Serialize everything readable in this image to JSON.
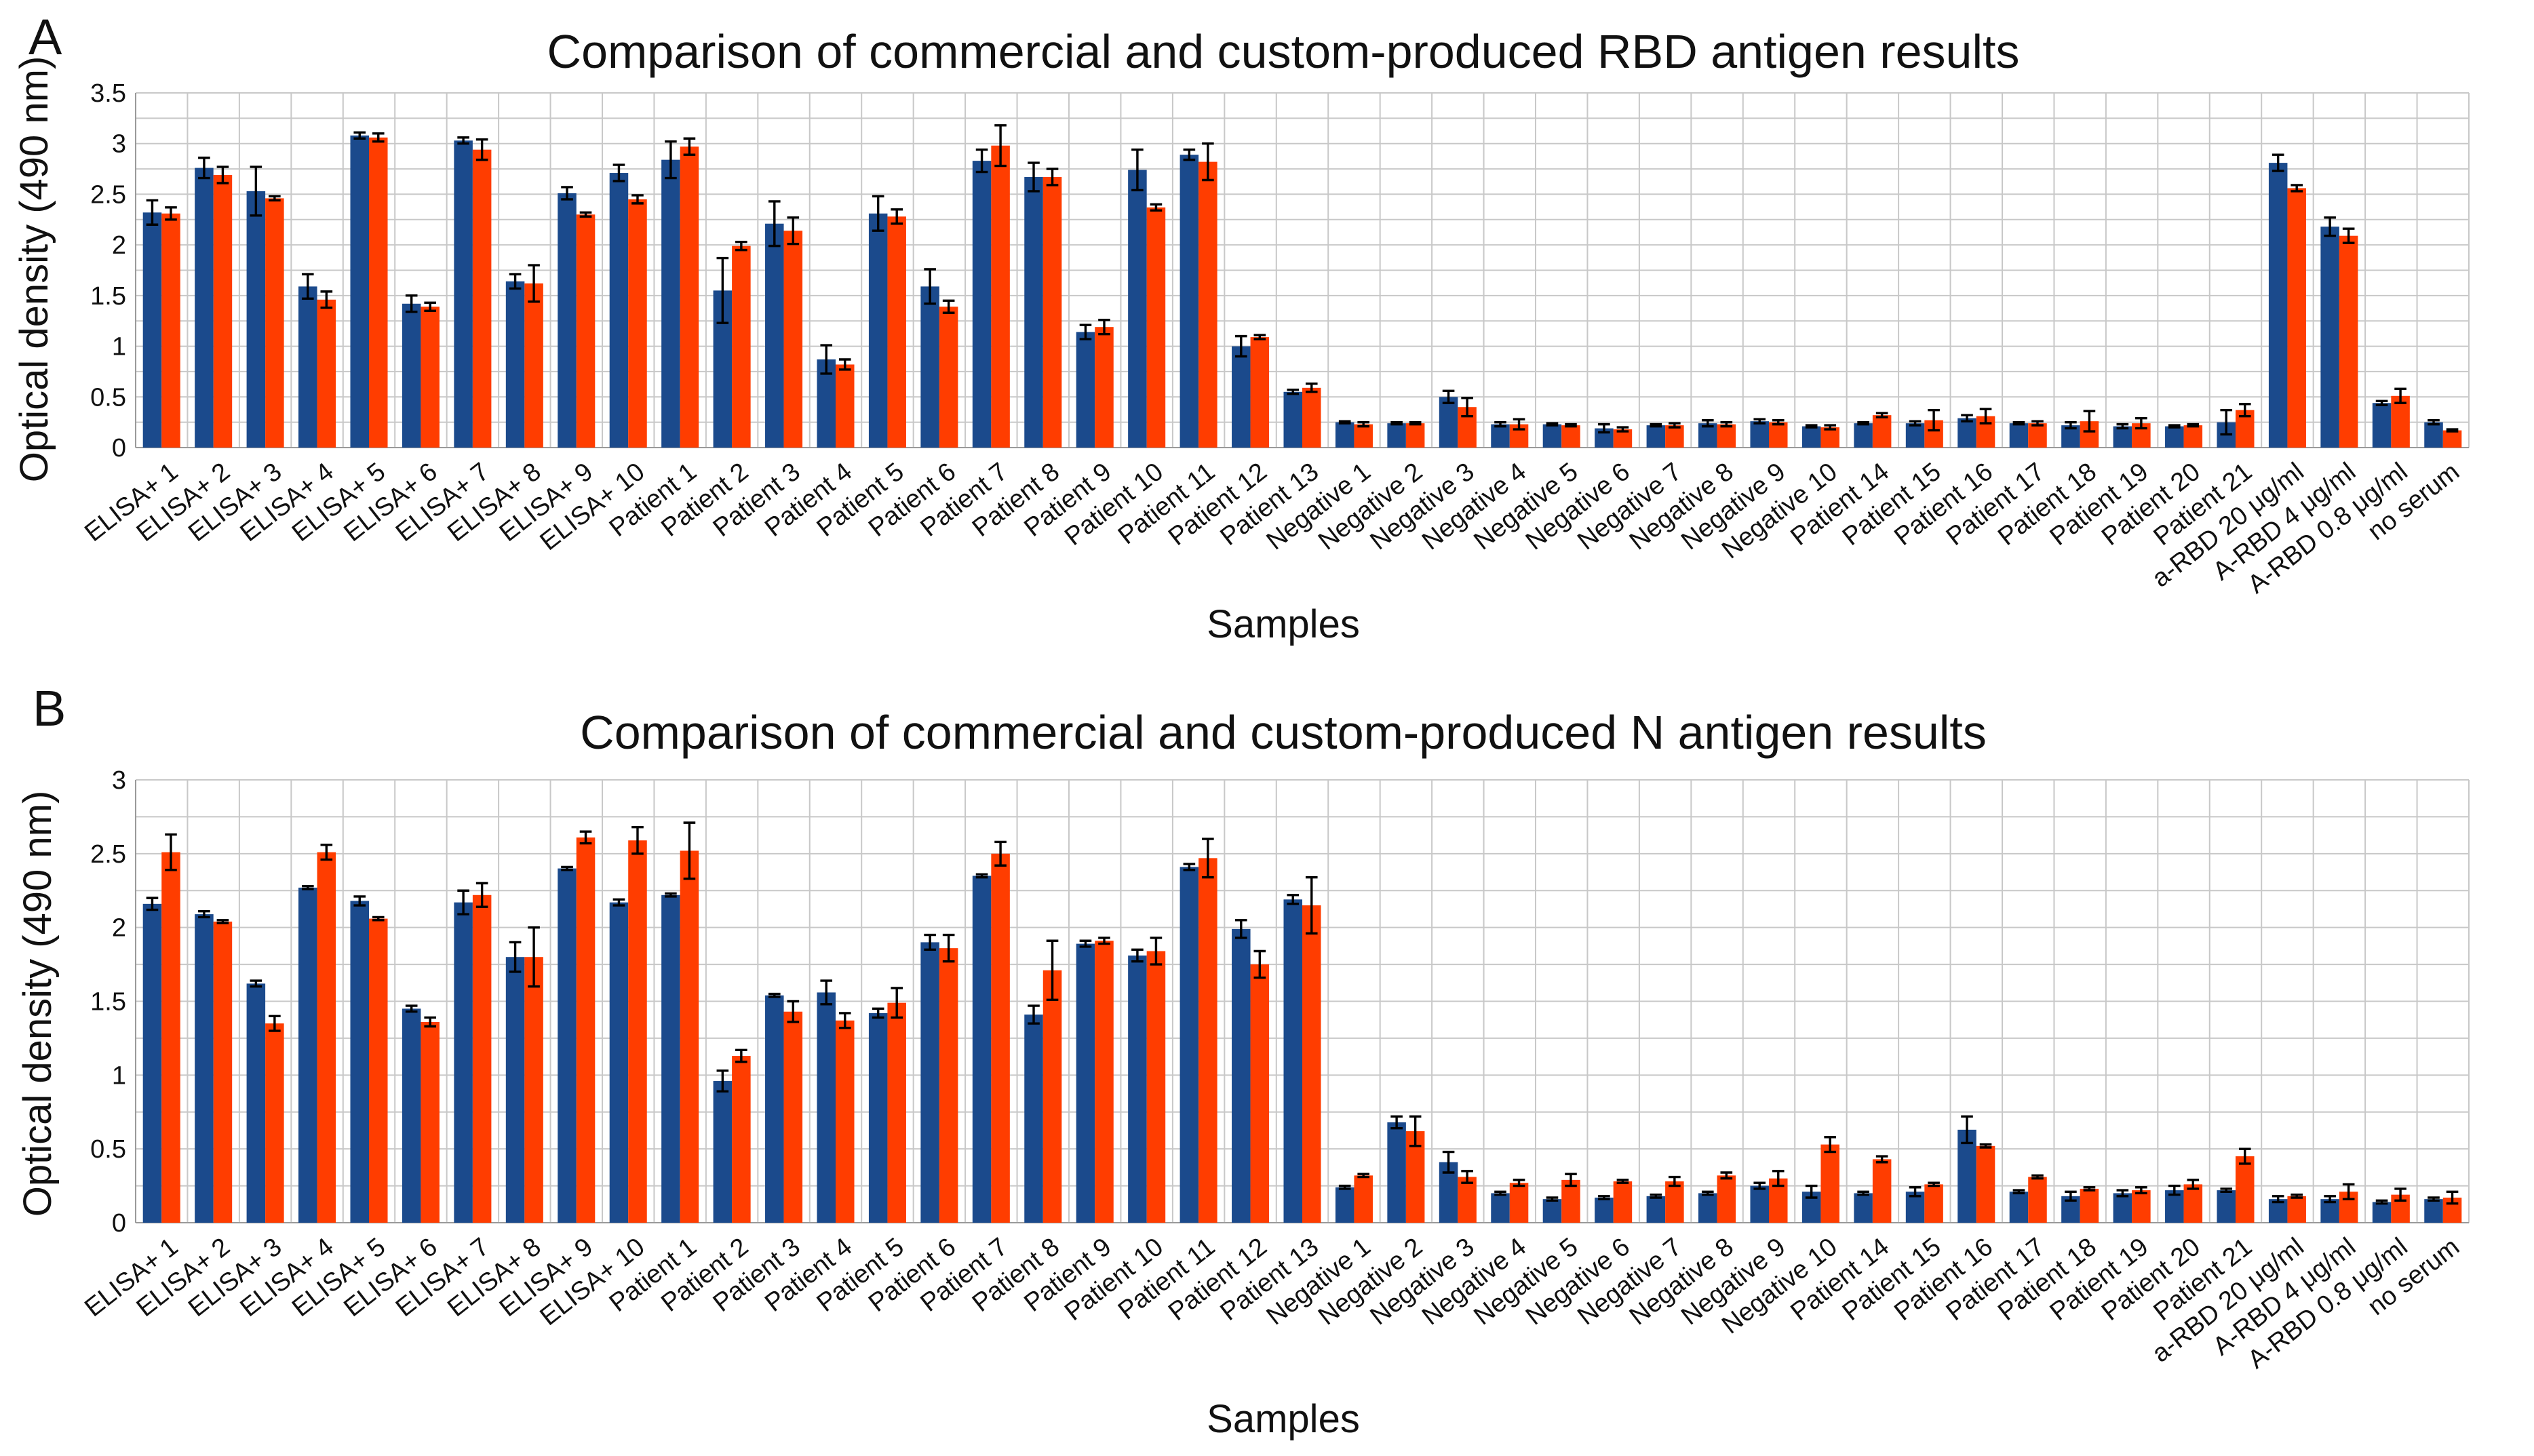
{
  "figure": {
    "panels": [
      "A",
      "B"
    ],
    "colors": {
      "commercial": "#1b4a8c",
      "custom": "#ff3d00"
    }
  },
  "chart_data": [
    {
      "type": "bar",
      "panel": "A",
      "title": "Comparison of commercial and custom-produced RBD antigen results",
      "xlabel": "Samples",
      "ylabel": "Optical density (490 nm)",
      "ylim": [
        0,
        3.5
      ],
      "yticks": [
        "0",
        "0.5",
        "1",
        "1.5",
        "2",
        "2.5",
        "3",
        "3.5"
      ],
      "grid": true,
      "categories": [
        "ELISA+ 1",
        "ELISA+ 2",
        "ELISA+ 3",
        "ELISA+ 4",
        "ELISA+ 5",
        "ELISA+ 6",
        "ELISA+ 7",
        "ELISA+ 8",
        "ELISA+ 9",
        "ELISA+ 10",
        "Patient 1",
        "Patient 2",
        "Patient 3",
        "Patient 4",
        "Patient 5",
        "Patient 6",
        "Patient 7",
        "Patient 8",
        "Patient 9",
        "Patient 10",
        "Patient 11",
        "Patient 12",
        "Patient 13",
        "Negative 1",
        "Negative 2",
        "Negative 3",
        "Negative 4",
        "Negative 5",
        "Negative 6",
        "Negative 7",
        "Negative 8",
        "Negative 9",
        "Negative 10",
        "Patient 14",
        "Patient 15",
        "Patient 16",
        "Patient 17",
        "Patient 18",
        "Patient 19",
        "Patient 20",
        "Patient 21",
        "a-RBD 20 μg/ml",
        "A-RBD 4 μg/ml",
        "A-RBD 0.8 μg/ml",
        "no serum"
      ],
      "series": [
        {
          "values": [
            2.32,
            2.76,
            2.53,
            1.59,
            3.08,
            1.42,
            3.03,
            1.64,
            2.51,
            2.71,
            2.84,
            1.55,
            2.21,
            0.87,
            2.31,
            1.59,
            2.83,
            2.67,
            1.14,
            2.74,
            2.89,
            1.0,
            0.55,
            0.25,
            0.24,
            0.5,
            0.23,
            0.23,
            0.19,
            0.22,
            0.24,
            0.26,
            0.21,
            0.24,
            0.24,
            0.29,
            0.24,
            0.22,
            0.21,
            0.21,
            0.25,
            2.81,
            2.18,
            0.44,
            0.25
          ],
          "errors": [
            0.12,
            0.1,
            0.24,
            0.12,
            0.03,
            0.08,
            0.03,
            0.07,
            0.06,
            0.08,
            0.18,
            0.32,
            0.22,
            0.14,
            0.17,
            0.17,
            0.11,
            0.14,
            0.07,
            0.2,
            0.05,
            0.1,
            0.02,
            0.01,
            0.01,
            0.06,
            0.02,
            0.01,
            0.04,
            0.01,
            0.03,
            0.02,
            0.01,
            0.01,
            0.02,
            0.03,
            0.01,
            0.03,
            0.02,
            0.01,
            0.12,
            0.08,
            0.09,
            0.02,
            0.02
          ]
        },
        {
          "values": [
            2.31,
            2.69,
            2.46,
            1.46,
            3.06,
            1.39,
            2.94,
            1.62,
            2.3,
            2.45,
            2.97,
            1.99,
            2.14,
            0.82,
            2.28,
            1.39,
            2.98,
            2.67,
            1.19,
            2.37,
            2.82,
            1.09,
            0.59,
            0.23,
            0.24,
            0.4,
            0.23,
            0.22,
            0.18,
            0.22,
            0.23,
            0.25,
            0.2,
            0.32,
            0.27,
            0.31,
            0.24,
            0.26,
            0.24,
            0.22,
            0.37,
            2.56,
            2.09,
            0.51,
            0.17
          ],
          "errors": [
            0.06,
            0.08,
            0.02,
            0.08,
            0.04,
            0.04,
            0.1,
            0.18,
            0.02,
            0.04,
            0.08,
            0.04,
            0.13,
            0.05,
            0.07,
            0.06,
            0.2,
            0.08,
            0.07,
            0.03,
            0.18,
            0.02,
            0.04,
            0.02,
            0.01,
            0.09,
            0.05,
            0.01,
            0.02,
            0.02,
            0.02,
            0.02,
            0.02,
            0.02,
            0.1,
            0.07,
            0.02,
            0.1,
            0.05,
            0.01,
            0.06,
            0.03,
            0.07,
            0.07,
            0.01
          ]
        }
      ]
    },
    {
      "type": "bar",
      "panel": "B",
      "title": "Comparison of commercial and custom-produced N antigen results",
      "xlabel": "Samples",
      "ylabel": "Optical density (490 nm)",
      "ylim": [
        0,
        3
      ],
      "yticks": [
        "0",
        "0.5",
        "1",
        "1.5",
        "2",
        "2.5",
        "3"
      ],
      "grid": true,
      "categories": [
        "ELISA+ 1",
        "ELISA+ 2",
        "ELISA+ 3",
        "ELISA+ 4",
        "ELISA+ 5",
        "ELISA+ 6",
        "ELISA+ 7",
        "ELISA+ 8",
        "ELISA+ 9",
        "ELISA+ 10",
        "Patient 1",
        "Patient 2",
        "Patient 3",
        "Patient 4",
        "Patient 5",
        "Patient 6",
        "Patient 7",
        "Patient 8",
        "Patient 9",
        "Patient 10",
        "Patient 11",
        "Patient 12",
        "Patient 13",
        "Negative 1",
        "Negative 2",
        "Negative 3",
        "Negative 4",
        "Negative 5",
        "Negative 6",
        "Negative 7",
        "Negative 8",
        "Negative 9",
        "Negative 10",
        "Patient 14",
        "Patient 15",
        "Patient 16",
        "Patient 17",
        "Patient 18",
        "Patient 19",
        "Patient 20",
        "Patient 21",
        "a-RBD 20 μg/ml",
        "A-RBD 4 μg/ml",
        "A-RBD 0.8 μg/ml",
        "no serum"
      ],
      "series": [
        {
          "values": [
            2.16,
            2.09,
            1.62,
            2.27,
            2.18,
            1.45,
            2.17,
            1.8,
            2.4,
            2.17,
            2.22,
            0.96,
            1.54,
            1.56,
            1.42,
            1.9,
            2.35,
            1.41,
            1.89,
            1.81,
            2.41,
            1.99,
            2.19,
            0.24,
            0.68,
            0.41,
            0.2,
            0.16,
            0.17,
            0.18,
            0.2,
            0.25,
            0.21,
            0.2,
            0.21,
            0.63,
            0.21,
            0.18,
            0.2,
            0.22,
            0.22,
            0.16,
            0.16,
            0.14,
            0.16
          ],
          "errors": [
            0.04,
            0.02,
            0.02,
            0.01,
            0.03,
            0.02,
            0.08,
            0.1,
            0.01,
            0.02,
            0.01,
            0.07,
            0.01,
            0.08,
            0.03,
            0.05,
            0.01,
            0.06,
            0.02,
            0.04,
            0.02,
            0.06,
            0.03,
            0.01,
            0.04,
            0.07,
            0.01,
            0.01,
            0.01,
            0.01,
            0.01,
            0.02,
            0.04,
            0.01,
            0.03,
            0.09,
            0.01,
            0.03,
            0.02,
            0.03,
            0.01,
            0.02,
            0.02,
            0.01,
            0.01
          ]
        },
        {
          "values": [
            2.51,
            2.04,
            1.35,
            2.51,
            2.06,
            1.36,
            2.22,
            1.8,
            2.61,
            2.59,
            2.52,
            1.13,
            1.43,
            1.37,
            1.49,
            1.86,
            2.5,
            1.71,
            1.91,
            1.84,
            2.47,
            1.75,
            2.15,
            0.32,
            0.62,
            0.31,
            0.27,
            0.29,
            0.28,
            0.28,
            0.32,
            0.3,
            0.53,
            0.43,
            0.26,
            0.52,
            0.31,
            0.23,
            0.22,
            0.26,
            0.45,
            0.18,
            0.21,
            0.19,
            0.17
          ],
          "errors": [
            0.12,
            0.01,
            0.05,
            0.05,
            0.01,
            0.03,
            0.08,
            0.2,
            0.04,
            0.09,
            0.19,
            0.04,
            0.07,
            0.05,
            0.1,
            0.09,
            0.08,
            0.2,
            0.02,
            0.09,
            0.13,
            0.09,
            0.19,
            0.01,
            0.1,
            0.04,
            0.02,
            0.04,
            0.01,
            0.03,
            0.02,
            0.05,
            0.05,
            0.02,
            0.01,
            0.01,
            0.01,
            0.01,
            0.02,
            0.03,
            0.05,
            0.01,
            0.05,
            0.04,
            0.04
          ]
        }
      ]
    }
  ]
}
